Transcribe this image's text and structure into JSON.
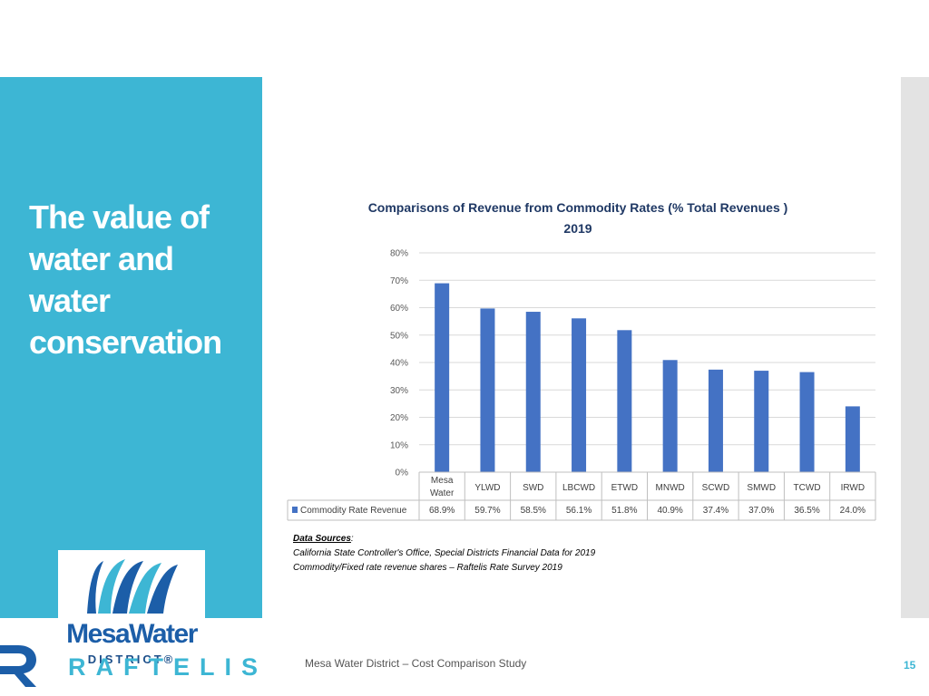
{
  "slide": {
    "title": "The value of water and water conservation",
    "footer_text": "Mesa Water District – Cost Comparison Study",
    "page_number": "15"
  },
  "logo": {
    "main": "MesaWater",
    "sub": "DISTRICT®"
  },
  "footer_brand": "RAFTELIS",
  "sources": {
    "label": "Data Sources",
    "line1": "California State Controller's Office, Special Districts Financial Data  for 2019",
    "line2": "Commodity/Fixed rate revenue shares – Raftelis Rate Survey 2019"
  },
  "colors": {
    "accent": "#3db6d4",
    "bar": "#4472c4",
    "title_text": "#1f3864",
    "brand_blue": "#1c5ea8"
  },
  "chart_data": {
    "type": "bar",
    "title": "Comparisons of Revenue from Commodity Rates (% Total Revenues )",
    "subtitle": "2019",
    "categories": [
      "Mesa Water",
      "YLWD",
      "SWD",
      "LBCWD",
      "ETWD",
      "MNWD",
      "SCWD",
      "SMWD",
      "TCWD",
      "IRWD"
    ],
    "series": [
      {
        "name": "Commodity Rate Revenue",
        "values": [
          68.9,
          59.7,
          58.5,
          56.1,
          51.8,
          40.9,
          37.4,
          37.0,
          36.5,
          24.0
        ],
        "labels": [
          "68.9%",
          "59.7%",
          "58.5%",
          "56.1%",
          "51.8%",
          "40.9%",
          "37.4%",
          "37.0%",
          "36.5%",
          "24.0%"
        ]
      }
    ],
    "ylim": [
      0,
      80
    ],
    "yticks": [
      "0%",
      "10%",
      "20%",
      "30%",
      "40%",
      "50%",
      "60%",
      "70%",
      "80%"
    ],
    "grid": true,
    "legend": "data-table"
  }
}
